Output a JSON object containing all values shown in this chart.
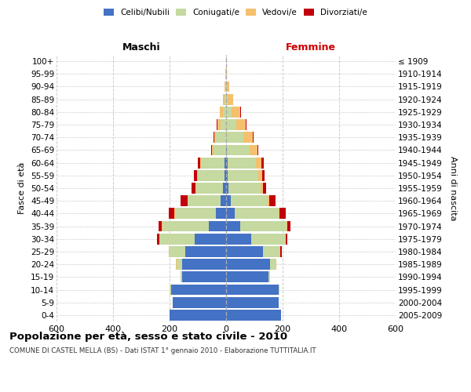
{
  "age_groups": [
    "0-4",
    "5-9",
    "10-14",
    "15-19",
    "20-24",
    "25-29",
    "30-34",
    "35-39",
    "40-44",
    "45-49",
    "50-54",
    "55-59",
    "60-64",
    "65-69",
    "70-74",
    "75-79",
    "80-84",
    "85-89",
    "90-94",
    "95-99",
    "100+"
  ],
  "birth_years": [
    "2005-2009",
    "2000-2004",
    "1995-1999",
    "1990-1994",
    "1985-1989",
    "1980-1984",
    "1975-1979",
    "1970-1974",
    "1965-1969",
    "1960-1964",
    "1955-1959",
    "1950-1954",
    "1945-1949",
    "1940-1944",
    "1935-1939",
    "1930-1934",
    "1925-1929",
    "1920-1924",
    "1915-1919",
    "1910-1914",
    "≤ 1909"
  ],
  "males": {
    "celibi": [
      200,
      190,
      195,
      155,
      155,
      145,
      110,
      60,
      35,
      20,
      10,
      5,
      5,
      0,
      0,
      0,
      0,
      0,
      0,
      0,
      0
    ],
    "coniugati": [
      0,
      0,
      5,
      5,
      20,
      55,
      125,
      165,
      145,
      115,
      95,
      95,
      85,
      45,
      35,
      20,
      10,
      5,
      2,
      2,
      0
    ],
    "vedovi": [
      0,
      0,
      0,
      0,
      2,
      2,
      2,
      2,
      2,
      2,
      2,
      2,
      3,
      5,
      8,
      10,
      12,
      5,
      3,
      2,
      0
    ],
    "divorziati": [
      0,
      0,
      0,
      0,
      0,
      0,
      8,
      12,
      22,
      25,
      15,
      12,
      8,
      2,
      2,
      2,
      0,
      0,
      0,
      0,
      0
    ]
  },
  "females": {
    "nubili": [
      195,
      185,
      185,
      150,
      155,
      130,
      90,
      50,
      30,
      18,
      8,
      5,
      5,
      2,
      0,
      0,
      0,
      0,
      0,
      0,
      0
    ],
    "coniugate": [
      0,
      0,
      5,
      5,
      20,
      60,
      120,
      165,
      155,
      130,
      115,
      110,
      100,
      80,
      60,
      35,
      20,
      5,
      2,
      0,
      0
    ],
    "vedove": [
      0,
      0,
      0,
      0,
      2,
      2,
      2,
      2,
      3,
      5,
      8,
      12,
      20,
      30,
      35,
      35,
      30,
      20,
      8,
      2,
      0
    ],
    "divorziate": [
      0,
      0,
      0,
      0,
      2,
      5,
      5,
      12,
      22,
      22,
      12,
      10,
      8,
      2,
      2,
      2,
      2,
      0,
      0,
      0,
      0
    ]
  },
  "colors": {
    "celibi_nubili": "#4472C4",
    "coniugati": "#C5D9A0",
    "vedovi": "#F5C06E",
    "divorziati": "#C0000C"
  },
  "title": "Popolazione per età, sesso e stato civile - 2010",
  "subtitle": "COMUNE DI CASTEL MELLA (BS) - Dati ISTAT 1° gennaio 2010 - Elaborazione TUTTITALIA.IT",
  "xlim": 600,
  "xlabel_left": "Maschi",
  "xlabel_right": "Femmine",
  "ylabel_left": "Fasce di età",
  "ylabel_right": "Anni di nascita",
  "legend_labels": [
    "Celibi/Nubili",
    "Coniugati/e",
    "Vedovi/e",
    "Divorziati/e"
  ]
}
